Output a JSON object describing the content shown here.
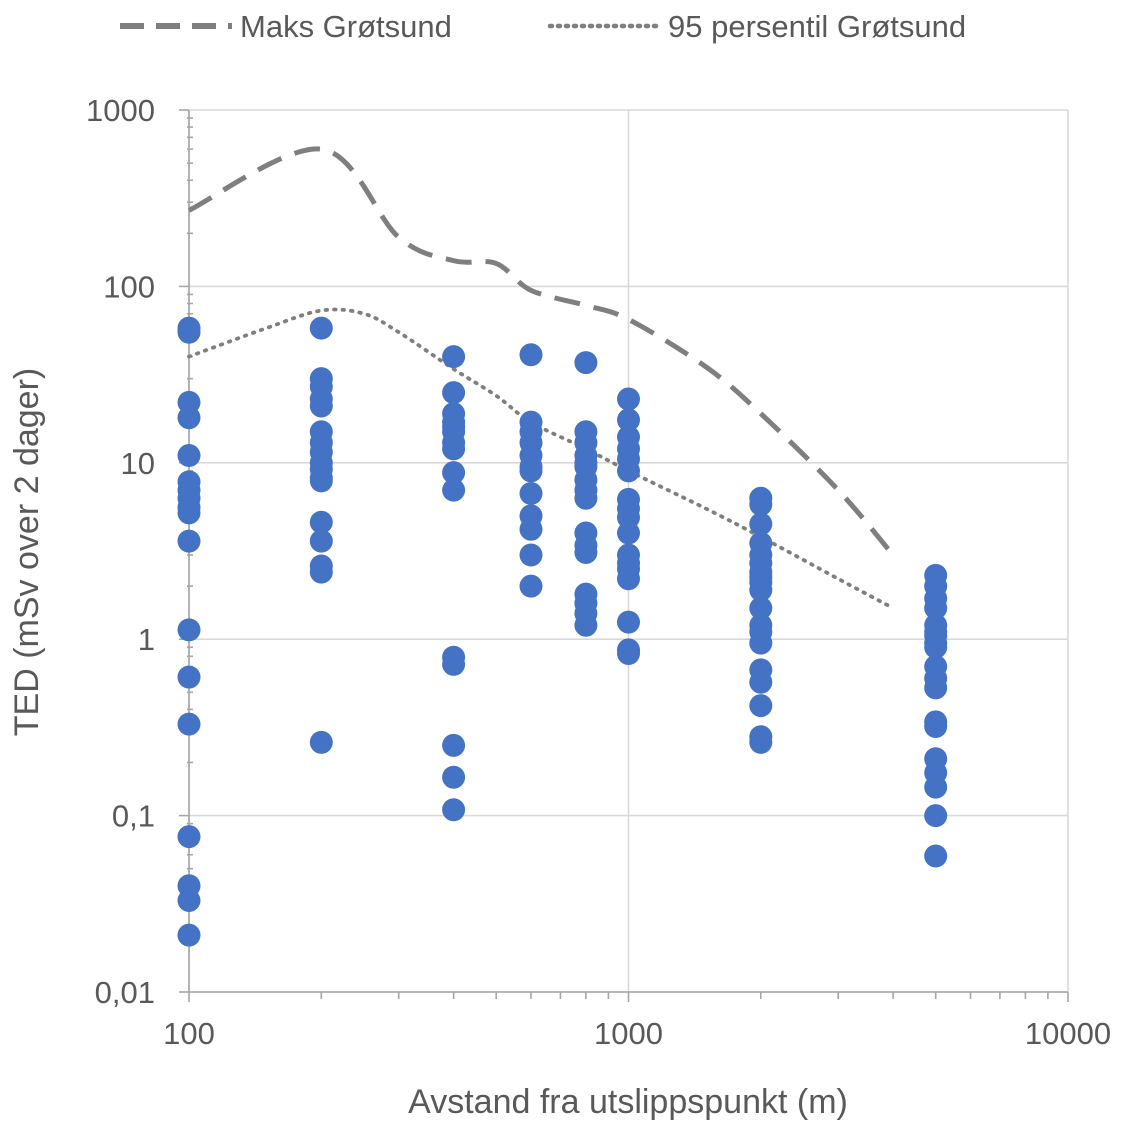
{
  "chart_data": {
    "type": "scatter",
    "xlabel": "Avstand fra utslippspunkt (m)",
    "ylabel": "TED (mSv over 2 dager)",
    "x_scale": "log",
    "y_scale": "log",
    "xlim": [
      100,
      10000
    ],
    "ylim": [
      0.01,
      1000
    ],
    "x_tick_labels": [
      "100",
      "1000",
      "10000"
    ],
    "y_tick_labels": [
      "0,01",
      "0,1",
      "1",
      "10",
      "100",
      "1000"
    ],
    "grid": true,
    "legend_position": "top",
    "series": [
      {
        "name": "Maks Grøtsund",
        "kind": "line",
        "style": "dashed",
        "color": "#7f7f7f",
        "x": [
          100,
          200,
          300,
          400,
          500,
          600,
          800,
          1000,
          1500,
          2000,
          3000,
          4000
        ],
        "y": [
          270,
          600,
          190,
          140,
          135,
          95,
          78,
          65,
          35,
          19,
          7,
          3
        ]
      },
      {
        "name": "95 persentil Grøtsund",
        "kind": "line",
        "style": "dotted",
        "color": "#7f7f7f",
        "x": [
          100,
          150,
          200,
          250,
          300,
          400,
          500,
          600,
          800,
          1000,
          1500,
          2000,
          3000,
          4000
        ],
        "y": [
          40,
          58,
          73,
          70,
          55,
          34,
          24,
          17,
          12,
          9,
          5.5,
          3.8,
          2.2,
          1.5
        ]
      },
      {
        "kind": "points",
        "color": "#4472c4",
        "x": [
          100,
          100,
          100,
          100,
          100,
          100,
          100,
          100,
          100,
          100,
          100,
          100,
          100,
          100,
          100,
          100,
          100,
          100,
          200,
          200,
          200,
          200,
          200,
          200,
          200,
          200,
          200,
          200,
          200,
          200,
          200,
          200,
          200,
          200,
          200,
          400,
          400,
          400,
          400,
          400,
          400,
          400,
          400,
          400,
          400,
          400,
          400,
          400,
          400,
          400,
          600,
          600,
          600,
          600,
          600,
          600,
          600,
          600,
          600,
          600,
          600,
          600,
          800,
          800,
          800,
          800,
          800,
          800,
          800,
          800,
          800,
          800,
          800,
          800,
          800,
          800,
          800,
          800,
          1000,
          1000,
          1000,
          1000,
          1000,
          1000,
          1000,
          1000,
          1000,
          1000,
          1000,
          1000,
          1000,
          1000,
          1000,
          1000,
          1000,
          2000,
          2000,
          2000,
          2000,
          2000,
          2000,
          2000,
          2000,
          2000,
          2000,
          2000,
          2000,
          2000,
          2000,
          2000,
          2000,
          2000,
          2000,
          2000,
          5000,
          5000,
          5000,
          5000,
          5000,
          5000,
          5000,
          5000,
          5000,
          5000,
          5000,
          5000,
          5000,
          5000,
          5000,
          5000,
          5000,
          5000,
          5000
        ],
        "y": [
          58,
          55,
          22,
          18,
          11,
          7.8,
          7,
          6.3,
          5.6,
          5.2,
          3.6,
          1.13,
          0.61,
          0.33,
          0.076,
          0.04,
          0.033,
          0.021,
          58,
          30,
          27,
          23,
          21,
          15,
          13,
          11.5,
          10,
          9.2,
          8.2,
          7.9,
          4.6,
          3.6,
          2.6,
          2.4,
          0.26,
          40,
          25,
          19,
          17,
          15,
          13,
          12,
          8.8,
          7,
          0.79,
          0.72,
          0.25,
          0.165,
          0.108,
          16,
          41,
          17,
          15,
          13,
          11,
          9.5,
          9,
          6.7,
          5,
          4.2,
          3,
          2,
          37,
          15,
          13,
          11,
          9.5,
          8,
          7,
          6.3,
          4,
          3.4,
          3.1,
          1.8,
          1.6,
          1.4,
          1.2,
          10,
          23,
          17.5,
          14,
          12,
          10.5,
          9,
          6.2,
          5.5,
          4.9,
          4,
          3,
          2.7,
          2.5,
          2.2,
          1.25,
          0.87,
          0.83,
          6.3,
          5.8,
          4.5,
          3.5,
          3,
          2.7,
          2.4,
          2.1,
          1.9,
          1.5,
          1.2,
          1.1,
          0.95,
          0.67,
          0.57,
          0.42,
          0.28,
          0.26,
          2.25,
          2.3,
          2,
          1.7,
          1.5,
          1.2,
          1.1,
          0.95,
          0.9,
          0.7,
          0.6,
          0.53,
          0.34,
          0.32,
          0.21,
          0.175,
          0.145,
          0.1,
          0.059,
          1.05
        ]
      }
    ]
  }
}
